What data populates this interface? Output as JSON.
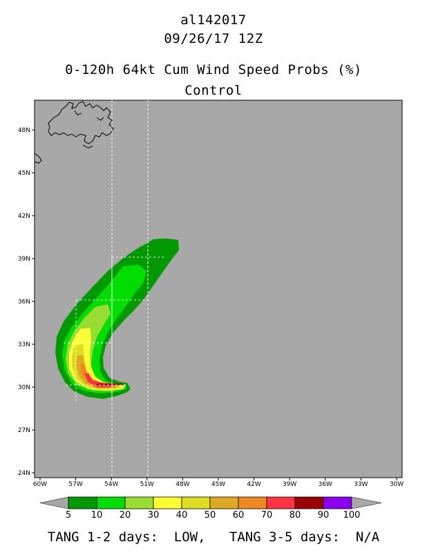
{
  "header": {
    "storm_id": "al142017",
    "datetime": "09/26/17 12Z",
    "product": "0-120h 64kt Cum Wind Speed Probs (%)",
    "run": "Control"
  },
  "map": {
    "background_color": "#a8a8a8",
    "lat_labels": [
      "48N",
      "45N",
      "42N",
      "39N",
      "36N",
      "33N",
      "30N",
      "27N",
      "24N"
    ],
    "lon_labels": [
      "60W",
      "57W",
      "54W",
      "51W",
      "48W",
      "45W",
      "42W",
      "39W",
      "36W",
      "33W",
      "30W"
    ]
  },
  "legend": {
    "colors": [
      "#009900",
      "#00dd00",
      "#99dd33",
      "#ffff33",
      "#dddd22",
      "#ddaa22",
      "#ee8822",
      "#ff3344",
      "#990000",
      "#8800ee"
    ],
    "labels": [
      "5",
      "10",
      "20",
      "30",
      "40",
      "50",
      "60",
      "70",
      "80",
      "90",
      "100"
    ],
    "arrow_color": "#a8a8a8"
  },
  "footer": {
    "text": "TANG 1-2 days:  LOW,   TANG 3-5 days:  N/A"
  }
}
